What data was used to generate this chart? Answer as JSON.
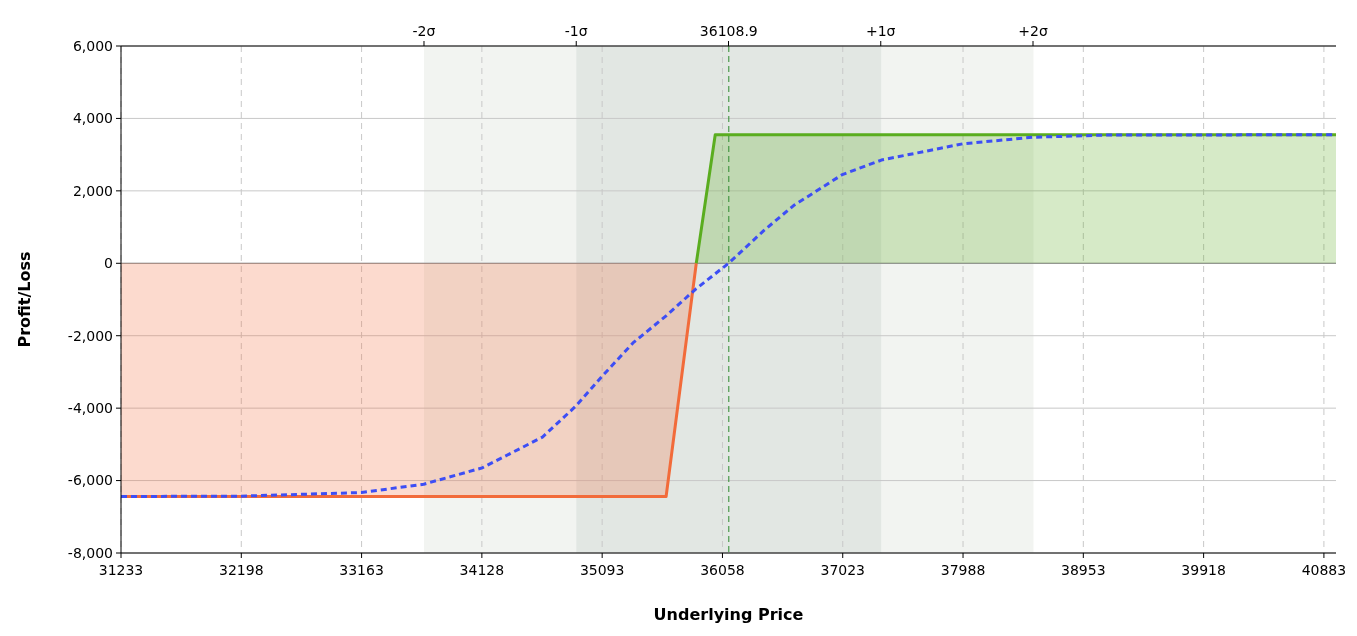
{
  "chart_data": {
    "type": "line",
    "xlabel": "Underlying Price",
    "ylabel": "Profit/Loss",
    "xlim": [
      31233,
      40980
    ],
    "xticks": [
      31233,
      32198,
      33163,
      34128,
      35093,
      36058,
      37023,
      37988,
      38953,
      39918,
      40883
    ],
    "x2lim": [
      -3.99,
      3.99
    ],
    "x2ticks": [
      {
        "value": -2,
        "label": "-2σ"
      },
      {
        "value": -1,
        "label": "-1σ"
      },
      {
        "value": 0,
        "label": null
      },
      {
        "value": 1,
        "label": "+1σ"
      },
      {
        "value": 2,
        "label": "+2σ"
      }
    ],
    "ylim": [
      -8000,
      6000
    ],
    "yticks": [
      {
        "value": -8000,
        "label": "-8,000"
      },
      {
        "value": -6000,
        "label": "-6,000"
      },
      {
        "value": -4000,
        "label": "-4,000"
      },
      {
        "value": -2000,
        "label": "-2,000"
      },
      0,
      {
        "value": 2000,
        "label": "2,000"
      },
      {
        "value": 4000,
        "label": "4,000"
      },
      {
        "value": 6000,
        "label": "6,000"
      }
    ],
    "grid": true,
    "line_style": "solid",
    "marker": "none",
    "bands": [
      {
        "axis": "x",
        "from": 33664,
        "to": 38553,
        "color": "#f2f4f1"
      },
      {
        "axis": "x",
        "from": 34886,
        "to": 37331,
        "color": "#e2e7e3"
      }
    ],
    "ref_lines": [
      {
        "axis": "x",
        "value": 36108.9,
        "label": "36108.9",
        "color": "#2e8b2e",
        "line_style": "dashed"
      }
    ],
    "series": [
      {
        "type": "area",
        "color": "#f26b3a",
        "x": [
          31233,
          35606,
          35848
        ],
        "values": [
          -6440,
          -6440,
          0
        ]
      },
      {
        "type": "area",
        "color": "#5aad1f",
        "x": [
          35848,
          36000,
          40980
        ],
        "values": [
          0,
          3550,
          3550
        ]
      },
      {
        "type": "line",
        "color": "#3d4ef5",
        "line_style": "dashed",
        "x": [
          31233,
          32193,
          33162,
          33662,
          34130,
          34614,
          34880,
          35098,
          35340,
          35606,
          35848,
          36107,
          36389,
          36631,
          37020,
          37333,
          37987,
          38544,
          39133,
          40980
        ],
        "values": [
          -6440,
          -6430,
          -6330,
          -6100,
          -5650,
          -4800,
          -3950,
          -3100,
          -2200,
          -1450,
          -700,
          0,
          900,
          1600,
          2450,
          2850,
          3300,
          3480,
          3540,
          3550
        ]
      }
    ]
  }
}
